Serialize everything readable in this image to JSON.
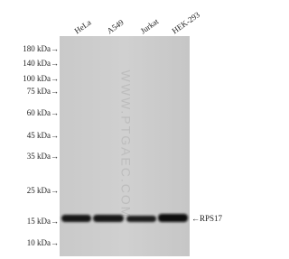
{
  "lanes": [
    "HeLa",
    "A549",
    "Jurkat",
    "HEK-293"
  ],
  "markers": [
    "180 kDa→",
    "140 kDa→",
    "100 kDa→",
    "75 kDa→",
    "60 kDa→",
    "45 kDa→",
    "35 kDa→",
    "25 kDa→",
    "15 kDa→",
    "10 kDa→"
  ],
  "band_label": "←RPS17",
  "watermark": "WWW.PTGAEC.COM"
}
